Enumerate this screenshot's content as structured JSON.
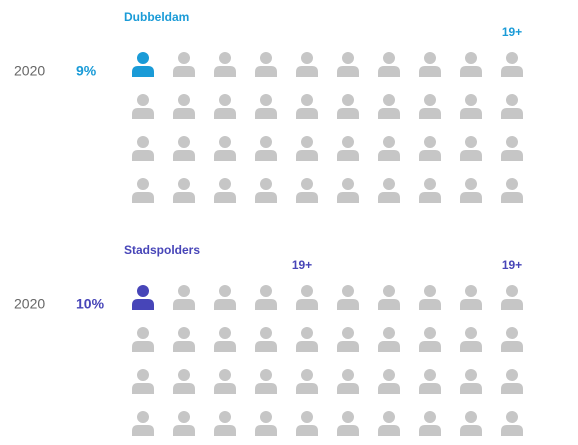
{
  "chart_data": [
    {
      "type": "pictogram",
      "title": "Dubbeldam",
      "categories": [
        "2020"
      ],
      "values": [
        9
      ],
      "value_labels": [
        "9%"
      ],
      "annotations": [
        "19+"
      ],
      "color": "#1a9bd7",
      "icon_color": "#c6c6c6",
      "rows": 4,
      "columns": 10
    },
    {
      "type": "pictogram",
      "title": "Stadspolders",
      "categories": [
        "2020"
      ],
      "values": [
        10
      ],
      "value_labels": [
        "10%"
      ],
      "annotations": [
        "19+",
        "19+"
      ],
      "color": "#4745b8",
      "icon_color": "#c6c6c6",
      "rows": 4,
      "columns": 10
    }
  ]
}
